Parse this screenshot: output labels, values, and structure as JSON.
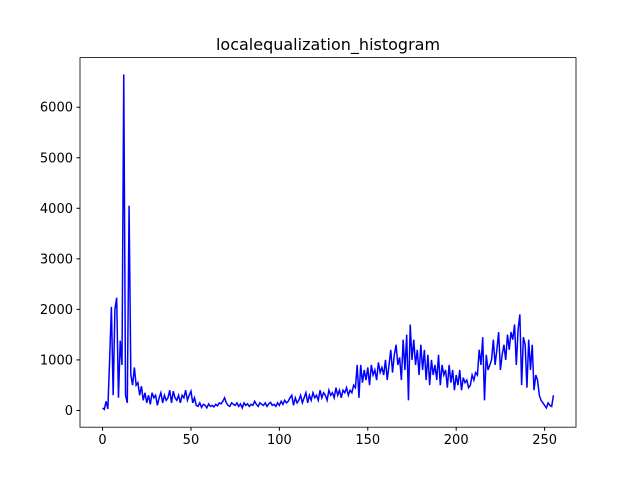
{
  "chart_data": {
    "type": "line",
    "title": "localequalization_histogram",
    "color": "#0000ff",
    "x": [
      0,
      1,
      2,
      3,
      4,
      5,
      6,
      7,
      8,
      9,
      10,
      11,
      12,
      13,
      14,
      15,
      16,
      17,
      18,
      19,
      20,
      21,
      22,
      23,
      24,
      25,
      26,
      27,
      28,
      29,
      30,
      31,
      32,
      33,
      34,
      35,
      36,
      37,
      38,
      39,
      40,
      41,
      42,
      43,
      44,
      45,
      46,
      47,
      48,
      49,
      50,
      51,
      52,
      53,
      54,
      55,
      56,
      57,
      58,
      59,
      60,
      61,
      62,
      63,
      64,
      65,
      66,
      67,
      68,
      69,
      70,
      71,
      72,
      73,
      74,
      75,
      76,
      77,
      78,
      79,
      80,
      81,
      82,
      83,
      84,
      85,
      86,
      87,
      88,
      89,
      90,
      91,
      92,
      93,
      94,
      95,
      96,
      97,
      98,
      99,
      100,
      101,
      102,
      103,
      104,
      105,
      106,
      107,
      108,
      109,
      110,
      111,
      112,
      113,
      114,
      115,
      116,
      117,
      118,
      119,
      120,
      121,
      122,
      123,
      124,
      125,
      126,
      127,
      128,
      129,
      130,
      131,
      132,
      133,
      134,
      135,
      136,
      137,
      138,
      139,
      140,
      141,
      142,
      143,
      144,
      145,
      146,
      147,
      148,
      149,
      150,
      151,
      152,
      153,
      154,
      155,
      156,
      157,
      158,
      159,
      160,
      161,
      162,
      163,
      164,
      165,
      166,
      167,
      168,
      169,
      170,
      171,
      172,
      173,
      174,
      175,
      176,
      177,
      178,
      179,
      180,
      181,
      182,
      183,
      184,
      185,
      186,
      187,
      188,
      189,
      190,
      191,
      192,
      193,
      194,
      195,
      196,
      197,
      198,
      199,
      200,
      201,
      202,
      203,
      204,
      205,
      206,
      207,
      208,
      209,
      210,
      211,
      212,
      213,
      214,
      215,
      216,
      217,
      218,
      219,
      220,
      221,
      222,
      223,
      224,
      225,
      226,
      227,
      228,
      229,
      230,
      231,
      232,
      233,
      234,
      235,
      236,
      237,
      238,
      239,
      240,
      241,
      242,
      243,
      244,
      245,
      246,
      247,
      248,
      249,
      250,
      251,
      252,
      253,
      254,
      255
    ],
    "values": [
      50,
      20,
      180,
      30,
      1000,
      2050,
      300,
      2000,
      2230,
      250,
      1380,
      900,
      6650,
      300,
      150,
      4050,
      700,
      500,
      850,
      500,
      550,
      300,
      480,
      200,
      350,
      150,
      300,
      120,
      350,
      250,
      300,
      100,
      250,
      350,
      150,
      300,
      200,
      250,
      400,
      150,
      380,
      250,
      200,
      300,
      150,
      300,
      250,
      400,
      200,
      300,
      380,
      150,
      250,
      100,
      80,
      150,
      60,
      120,
      100,
      50,
      130,
      80,
      100,
      70,
      120,
      90,
      150,
      130,
      180,
      250,
      150,
      100,
      80,
      150,
      120,
      100,
      150,
      80,
      130,
      50,
      150,
      100,
      130,
      80,
      120,
      100,
      180,
      120,
      80,
      150,
      120,
      100,
      150,
      80,
      130,
      160,
      100,
      120,
      80,
      150,
      100,
      180,
      120,
      200,
      150,
      180,
      250,
      300,
      100,
      250,
      150,
      200,
      300,
      150,
      250,
      350,
      150,
      300,
      200,
      350,
      250,
      300,
      200,
      400,
      250,
      350,
      300,
      200,
      400,
      300,
      350,
      250,
      450,
      300,
      400,
      250,
      400,
      350,
      450,
      300,
      400,
      350,
      500,
      450,
      900,
      250,
      900,
      550,
      800,
      600,
      850,
      500,
      900,
      700,
      800,
      600,
      950,
      750,
      850,
      700,
      1000,
      600,
      900,
      1200,
      750,
      1100,
      1300,
      900,
      1050,
      600,
      1400,
      800,
      1500,
      200,
      1700,
      1000,
      1400,
      900,
      1200,
      700,
      1300,
      800,
      1200,
      600,
      1100,
      500,
      1000,
      700,
      900,
      600,
      1100,
      500,
      900,
      700,
      800,
      450,
      900,
      550,
      800,
      400,
      700,
      500,
      800,
      400,
      650,
      550,
      600,
      450,
      500,
      700,
      600,
      750,
      700,
      1200,
      900,
      1450,
      200,
      1100,
      800,
      900,
      1000,
      1400,
      900,
      1200,
      1550,
      800,
      1100,
      1300,
      1000,
      1500,
      1200,
      1550,
      1400,
      1700,
      900,
      1600,
      1900,
      500,
      1450,
      1300,
      450,
      1400,
      800,
      1300,
      400,
      700,
      600,
      300,
      200,
      150,
      100,
      50,
      150,
      100,
      80,
      300
    ],
    "xlim": [
      -12.75,
      267.75
    ],
    "xticks": [
      0,
      50,
      100,
      150,
      200,
      250
    ],
    "ylim": [
      -332,
      6982
    ],
    "yticks": [
      0,
      1000,
      2000,
      3000,
      4000,
      5000,
      6000
    ]
  }
}
